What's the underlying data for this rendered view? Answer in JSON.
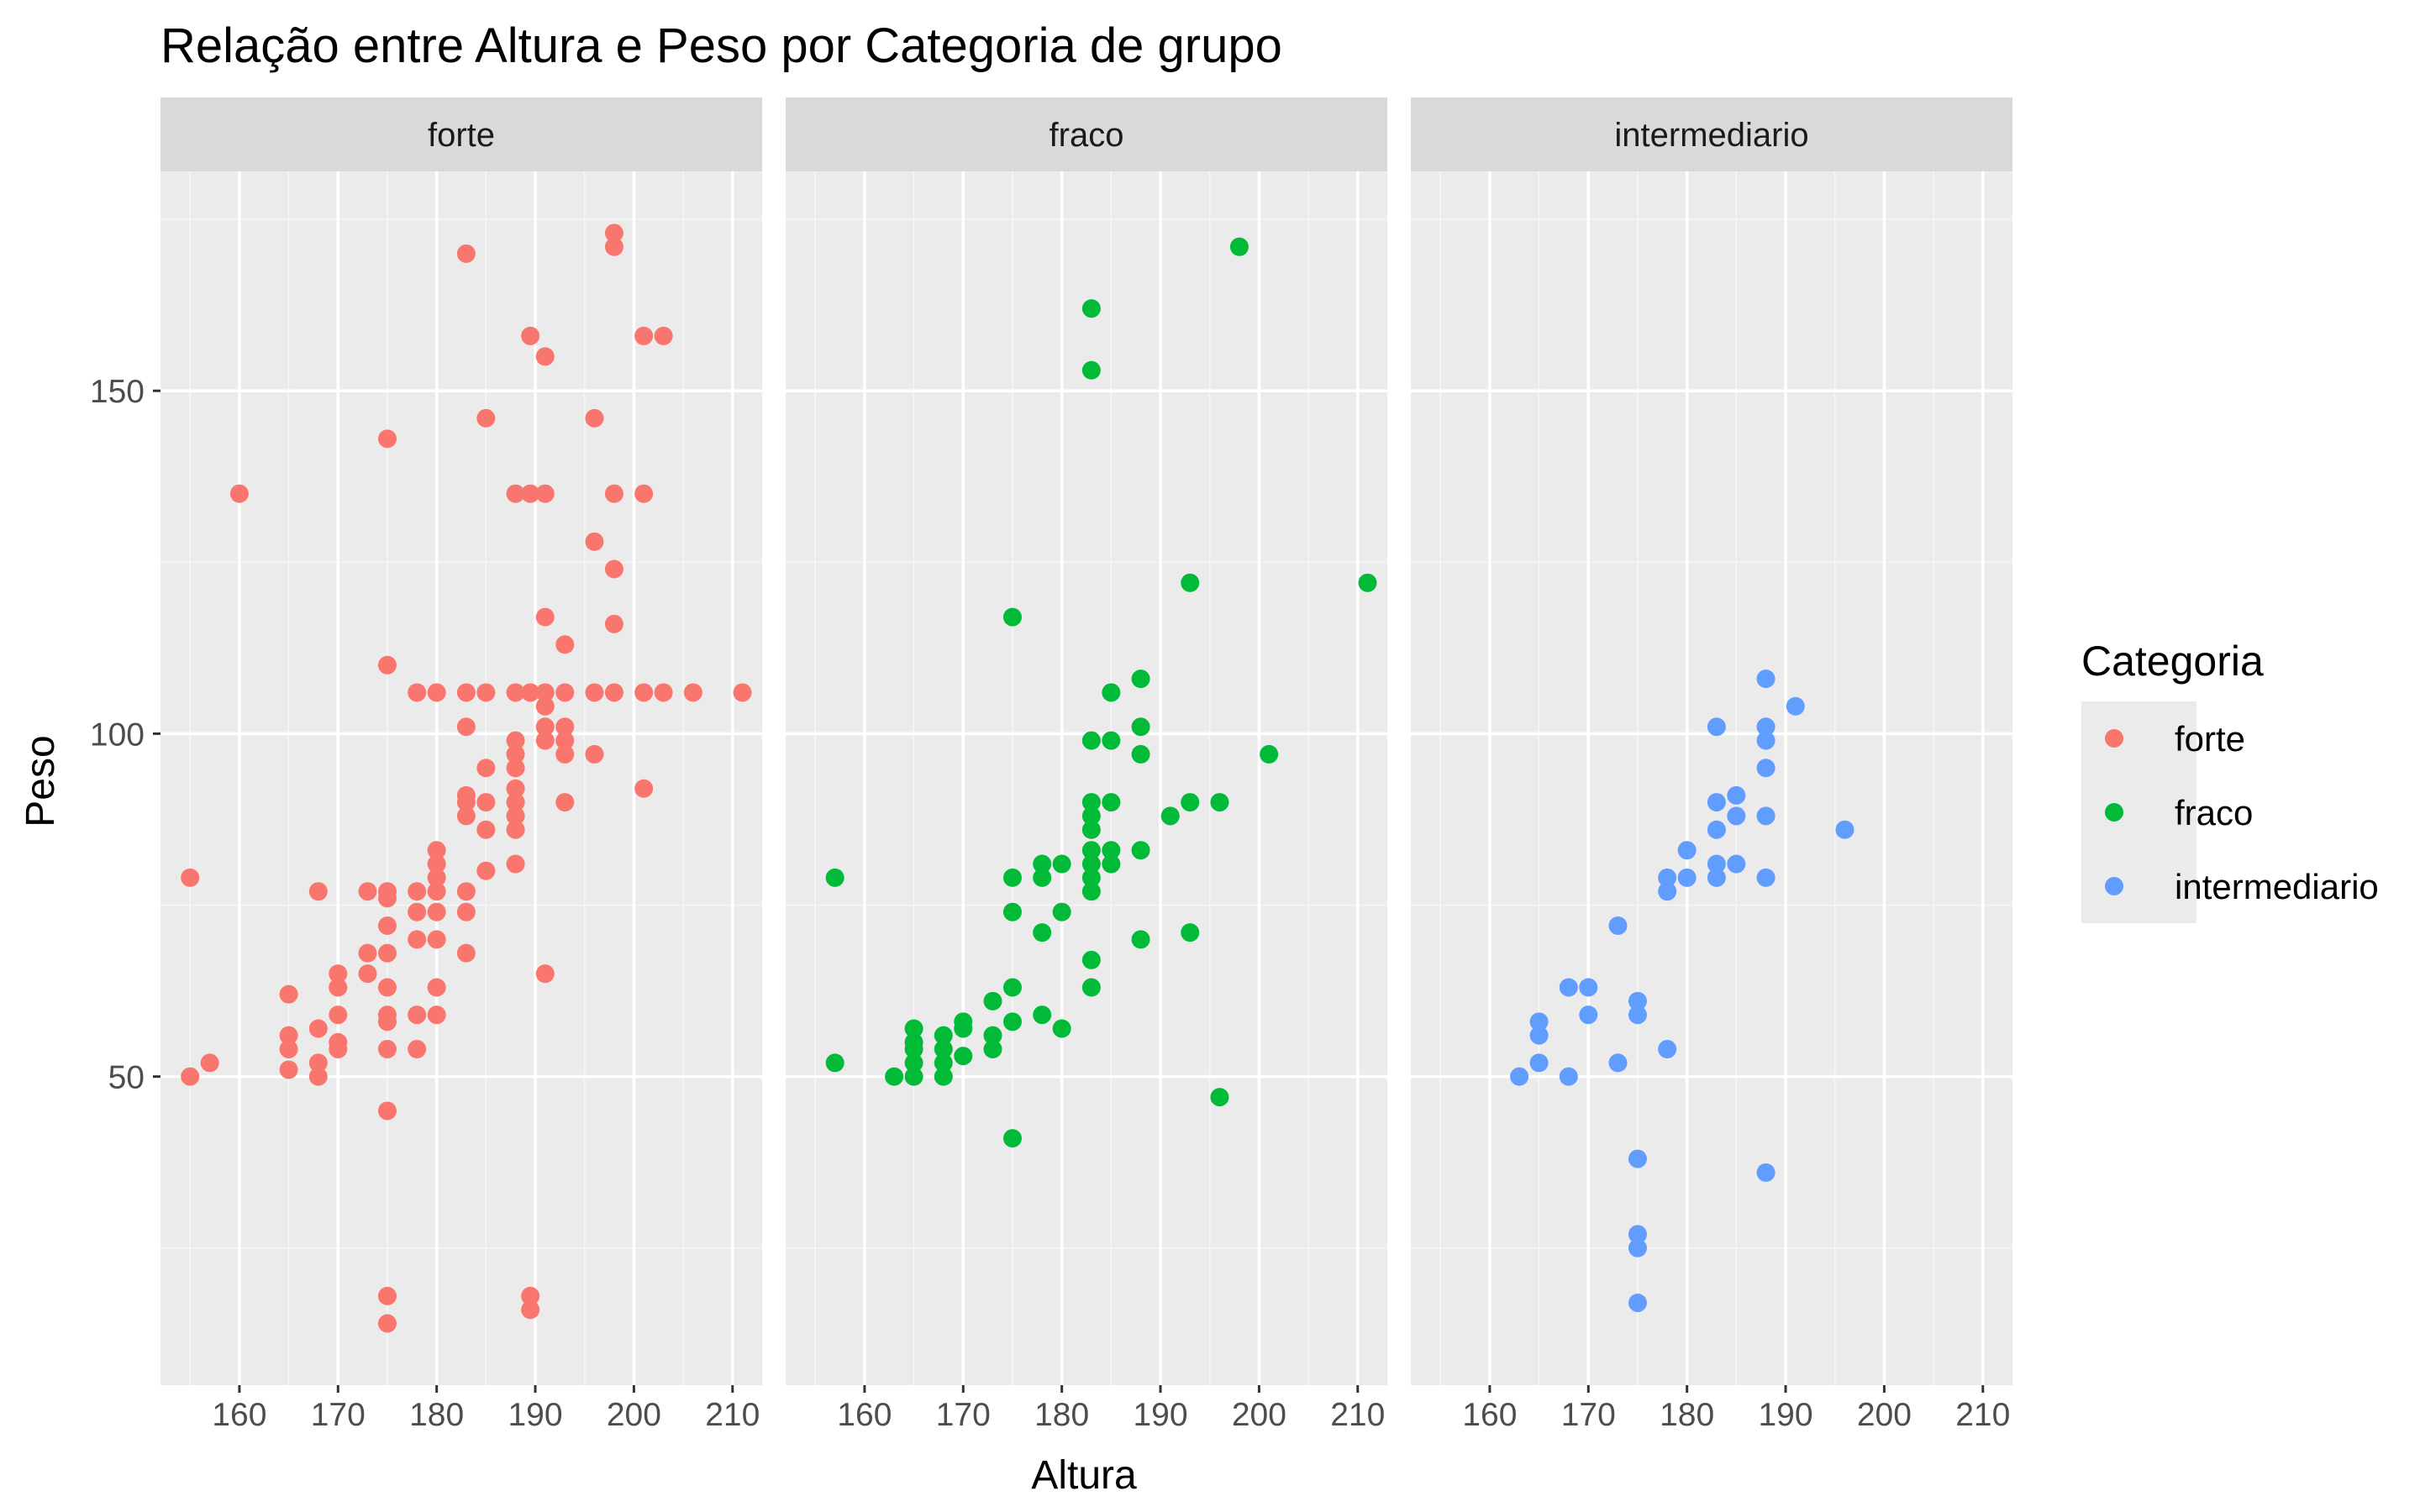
{
  "chart_data": {
    "type": "scatter",
    "title": "Relação entre Altura e Peso por Categoria de grupo",
    "xlabel": "Altura",
    "ylabel": "Peso",
    "xlim": [
      152,
      213
    ],
    "ylim": [
      5,
      182
    ],
    "x_ticks": [
      160,
      170,
      180,
      190,
      200,
      210
    ],
    "y_ticks": [
      50,
      100,
      150
    ],
    "grid": true,
    "facet_by": "Categoria",
    "legend": {
      "title": "Categoria",
      "placement": "right",
      "items": [
        {
          "label": "forte",
          "color": "#F8766D"
        },
        {
          "label": "fraco",
          "color": "#00BA38"
        },
        {
          "label": "intermediario",
          "color": "#619CFF"
        }
      ]
    },
    "panels": [
      {
        "name": "forte",
        "color": "#F8766D",
        "points": [
          [
            155,
            79
          ],
          [
            155,
            50
          ],
          [
            157,
            52
          ],
          [
            160,
            135
          ],
          [
            165,
            62
          ],
          [
            165,
            56
          ],
          [
            165,
            54
          ],
          [
            165,
            51
          ],
          [
            168,
            77
          ],
          [
            168,
            57
          ],
          [
            168,
            52
          ],
          [
            168,
            50
          ],
          [
            170,
            65
          ],
          [
            170,
            63
          ],
          [
            170,
            59
          ],
          [
            170,
            55
          ],
          [
            170,
            54
          ],
          [
            173,
            77
          ],
          [
            173,
            68
          ],
          [
            173,
            65
          ],
          [
            175,
            143
          ],
          [
            175,
            110
          ],
          [
            175,
            77
          ],
          [
            175,
            76
          ],
          [
            175,
            72
          ],
          [
            175,
            68
          ],
          [
            175,
            63
          ],
          [
            175,
            59
          ],
          [
            175,
            58
          ],
          [
            175,
            54
          ],
          [
            175,
            45
          ],
          [
            175,
            18
          ],
          [
            175,
            14
          ],
          [
            178,
            106
          ],
          [
            178,
            77
          ],
          [
            178,
            74
          ],
          [
            178,
            70
          ],
          [
            178,
            59
          ],
          [
            178,
            54
          ],
          [
            180,
            106
          ],
          [
            180,
            83
          ],
          [
            180,
            81
          ],
          [
            180,
            79
          ],
          [
            180,
            77
          ],
          [
            180,
            74
          ],
          [
            180,
            70
          ],
          [
            180,
            63
          ],
          [
            180,
            59
          ],
          [
            183,
            170
          ],
          [
            183,
            106
          ],
          [
            183,
            101
          ],
          [
            183,
            91
          ],
          [
            183,
            90
          ],
          [
            183,
            88
          ],
          [
            183,
            77
          ],
          [
            183,
            74
          ],
          [
            183,
            68
          ],
          [
            185,
            146
          ],
          [
            185,
            106
          ],
          [
            185,
            95
          ],
          [
            185,
            90
          ],
          [
            185,
            86
          ],
          [
            185,
            80
          ],
          [
            188,
            135
          ],
          [
            188,
            106
          ],
          [
            188,
            99
          ],
          [
            188,
            97
          ],
          [
            188,
            95
          ],
          [
            188,
            92
          ],
          [
            188,
            90
          ],
          [
            188,
            88
          ],
          [
            188,
            86
          ],
          [
            188,
            81
          ],
          [
            189.5,
            158
          ],
          [
            189.5,
            135
          ],
          [
            189.5,
            106
          ],
          [
            189.5,
            18
          ],
          [
            189.5,
            16
          ],
          [
            191,
            155
          ],
          [
            191,
            135
          ],
          [
            191,
            117
          ],
          [
            191,
            106
          ],
          [
            191,
            104
          ],
          [
            191,
            101
          ],
          [
            191,
            99
          ],
          [
            191,
            65
          ],
          [
            193,
            113
          ],
          [
            193,
            106
          ],
          [
            193,
            101
          ],
          [
            193,
            99
          ],
          [
            193,
            97
          ],
          [
            193,
            90
          ],
          [
            196,
            146
          ],
          [
            196,
            128
          ],
          [
            196,
            106
          ],
          [
            196,
            97
          ],
          [
            198,
            173
          ],
          [
            198,
            171
          ],
          [
            198,
            135
          ],
          [
            198,
            124
          ],
          [
            198,
            116
          ],
          [
            198,
            106
          ],
          [
            201,
            158
          ],
          [
            201,
            135
          ],
          [
            201,
            106
          ],
          [
            201,
            92
          ],
          [
            203,
            158
          ],
          [
            203,
            106
          ],
          [
            206,
            106
          ],
          [
            211,
            106
          ]
        ]
      },
      {
        "name": "fraco",
        "color": "#00BA38",
        "points": [
          [
            157,
            79
          ],
          [
            157,
            52
          ],
          [
            163,
            50
          ],
          [
            165,
            57
          ],
          [
            165,
            55
          ],
          [
            165,
            54
          ],
          [
            165,
            52
          ],
          [
            165,
            50
          ],
          [
            168,
            56
          ],
          [
            168,
            54
          ],
          [
            168,
            52
          ],
          [
            168,
            50
          ],
          [
            170,
            58
          ],
          [
            170,
            57
          ],
          [
            170,
            53
          ],
          [
            173,
            61
          ],
          [
            173,
            56
          ],
          [
            173,
            54
          ],
          [
            175,
            117
          ],
          [
            175,
            79
          ],
          [
            175,
            74
          ],
          [
            175,
            63
          ],
          [
            175,
            58
          ],
          [
            175,
            41
          ],
          [
            178,
            81
          ],
          [
            178,
            79
          ],
          [
            178,
            71
          ],
          [
            178,
            59
          ],
          [
            180,
            81
          ],
          [
            180,
            74
          ],
          [
            180,
            57
          ],
          [
            183,
            162
          ],
          [
            183,
            153
          ],
          [
            183,
            99
          ],
          [
            183,
            90
          ],
          [
            183,
            88
          ],
          [
            183,
            86
          ],
          [
            183,
            83
          ],
          [
            183,
            81
          ],
          [
            183,
            79
          ],
          [
            183,
            77
          ],
          [
            183,
            67
          ],
          [
            183,
            63
          ],
          [
            185,
            106
          ],
          [
            185,
            99
          ],
          [
            185,
            90
          ],
          [
            185,
            83
          ],
          [
            185,
            81
          ],
          [
            188,
            108
          ],
          [
            188,
            101
          ],
          [
            188,
            97
          ],
          [
            188,
            83
          ],
          [
            188,
            70
          ],
          [
            191,
            88
          ],
          [
            193,
            122
          ],
          [
            193,
            90
          ],
          [
            193,
            71
          ],
          [
            196,
            90
          ],
          [
            196,
            47
          ],
          [
            198,
            171
          ],
          [
            201,
            97
          ],
          [
            211,
            122
          ]
        ]
      },
      {
        "name": "intermediario",
        "color": "#619CFF",
        "points": [
          [
            163,
            50
          ],
          [
            165,
            58
          ],
          [
            165,
            56
          ],
          [
            165,
            52
          ],
          [
            168,
            63
          ],
          [
            168,
            50
          ],
          [
            170,
            63
          ],
          [
            170,
            59
          ],
          [
            173,
            72
          ],
          [
            173,
            52
          ],
          [
            175,
            61
          ],
          [
            175,
            59
          ],
          [
            175,
            38
          ],
          [
            175,
            27
          ],
          [
            175,
            25
          ],
          [
            175,
            17
          ],
          [
            178,
            79
          ],
          [
            178,
            77
          ],
          [
            178,
            54
          ],
          [
            180,
            83
          ],
          [
            180,
            79
          ],
          [
            183,
            101
          ],
          [
            183,
            90
          ],
          [
            183,
            86
          ],
          [
            183,
            81
          ],
          [
            183,
            79
          ],
          [
            185,
            91
          ],
          [
            185,
            88
          ],
          [
            185,
            81
          ],
          [
            188,
            108
          ],
          [
            188,
            101
          ],
          [
            188,
            99
          ],
          [
            188,
            95
          ],
          [
            188,
            88
          ],
          [
            188,
            79
          ],
          [
            188,
            36
          ],
          [
            191,
            104
          ],
          [
            196,
            86
          ]
        ]
      }
    ]
  }
}
